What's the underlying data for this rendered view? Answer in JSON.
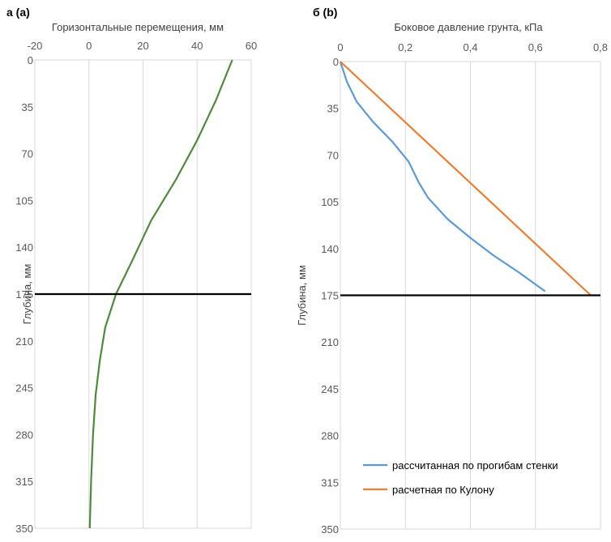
{
  "chart_data": [
    {
      "type": "line",
      "panel_label": "а (a)",
      "xlabel": "Горизонтальные перемещения,  мм",
      "ylabel": "Глубина, мм",
      "xlim": [
        -20,
        60
      ],
      "ylim": [
        0,
        350
      ],
      "y_inverted": true,
      "x_axis_position": "top",
      "x_ticks": [
        "-20",
        "0",
        "20",
        "40",
        "60"
      ],
      "y_ticks": [
        "0",
        "35",
        "70",
        "105",
        "140",
        "175",
        "210",
        "245",
        "280",
        "315",
        "350"
      ],
      "grid": "vertical",
      "reference_line_y": 175,
      "series": [
        {
          "color": "#4e8a3c",
          "points": [
            [
              53,
              0
            ],
            [
              47,
              30
            ],
            [
              40,
              60
            ],
            [
              32,
              90
            ],
            [
              23,
              120
            ],
            [
              16,
              150
            ],
            [
              10,
              175
            ],
            [
              6,
              200
            ],
            [
              4,
              225
            ],
            [
              2.5,
              250
            ],
            [
              1.5,
              280
            ],
            [
              0.8,
              315
            ],
            [
              0.3,
              350
            ]
          ]
        }
      ]
    },
    {
      "type": "line",
      "panel_label": "б (b)",
      "xlabel": "Боковое давление грунта, кПа",
      "ylabel": "Глубина, мм",
      "xlim": [
        0,
        0.8
      ],
      "ylim": [
        0,
        350
      ],
      "y_inverted": true,
      "x_axis_position": "top",
      "x_ticks": [
        "0",
        "0,2",
        "0,4",
        "0,6",
        "0,8"
      ],
      "y_ticks": [
        "0",
        "35",
        "70",
        "105",
        "140",
        "175",
        "210",
        "245",
        "280",
        "315",
        "350"
      ],
      "grid": "vertical",
      "reference_line_y": 175,
      "legend_position": "bottom-right",
      "series": [
        {
          "name": "рассчитанная по прогибам стенки",
          "color": "#5b9bd5",
          "points": [
            [
              0,
              0
            ],
            [
              0.02,
              15
            ],
            [
              0.05,
              30
            ],
            [
              0.1,
              45
            ],
            [
              0.16,
              60
            ],
            [
              0.21,
              75
            ],
            [
              0.24,
              90
            ],
            [
              0.27,
              102
            ],
            [
              0.33,
              118
            ],
            [
              0.4,
              132
            ],
            [
              0.47,
              145
            ],
            [
              0.55,
              158
            ],
            [
              0.63,
              172
            ]
          ]
        },
        {
          "name": "расчетная по Кулону",
          "color": "#ed7d31",
          "points": [
            [
              0,
              0
            ],
            [
              0.77,
              175
            ]
          ]
        }
      ]
    }
  ]
}
